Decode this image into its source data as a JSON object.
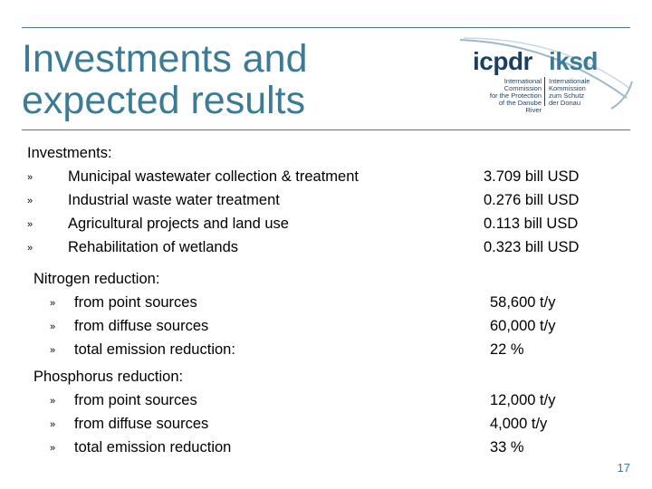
{
  "title": {
    "line1": "Investments and",
    "line2": "expected results"
  },
  "logo": {
    "left_word": "icpdr",
    "right_word": "iksd",
    "left_sub": [
      "International",
      "Commission",
      "for the Protection",
      "of the Danube River"
    ],
    "right_sub": [
      "Internationale",
      "Kommission",
      "zum Schutz",
      "der Donau"
    ]
  },
  "bullet_glyph": "»",
  "investments": {
    "heading": "Investments:",
    "items": [
      {
        "label": "Municipal wastewater collection & treatment",
        "value": "3.709 bill USD"
      },
      {
        "label": "Industrial waste water treatment",
        "value": "0.276 bill USD"
      },
      {
        "label": "Agricultural projects and land use",
        "value": "0.113 bill USD"
      },
      {
        "label": "Rehabilitation of wetlands",
        "value": "0.323 bill USD"
      }
    ]
  },
  "nitrogen": {
    "heading": "Nitrogen reduction:",
    "items": [
      {
        "label": "from point sources",
        "value": "58,600 t/y"
      },
      {
        "label": "from diffuse sources",
        "value": "60,000 t/y"
      },
      {
        "label": "total emission reduction:",
        "value": "22 %"
      }
    ]
  },
  "phosphorus": {
    "heading": "Phosphorus reduction:",
    "items": [
      {
        "label": "from point sources",
        "value": "12,000 t/y"
      },
      {
        "label": "from diffuse sources",
        "value": "4,000 t/y"
      },
      {
        "label": "total emission reduction",
        "value": "33 %"
      }
    ]
  },
  "page_number": "17",
  "colors": {
    "accent": "#3c7b95",
    "rule": "#4a7d8c",
    "logo_dark": "#1b3f5e"
  }
}
